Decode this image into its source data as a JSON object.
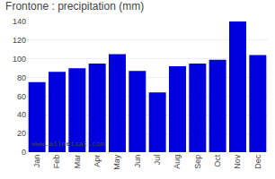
{
  "chart_data": {
    "type": "bar",
    "title": "Frontone : precipitation (mm)",
    "categories": [
      "Jan",
      "Feb",
      "Mar",
      "Apr",
      "May",
      "Jun",
      "Jul",
      "Aug",
      "Sep",
      "Oct",
      "Nov",
      "Dec"
    ],
    "values": [
      75,
      86,
      90,
      95,
      105,
      87,
      64,
      92,
      95,
      99,
      140,
      104
    ],
    "color": "#0000dd",
    "ylim": [
      0,
      140
    ],
    "yticks": [
      0,
      20,
      40,
      60,
      80,
      100,
      120,
      140
    ],
    "grid": true,
    "annotations": [
      "www.allmetsat.com"
    ]
  }
}
